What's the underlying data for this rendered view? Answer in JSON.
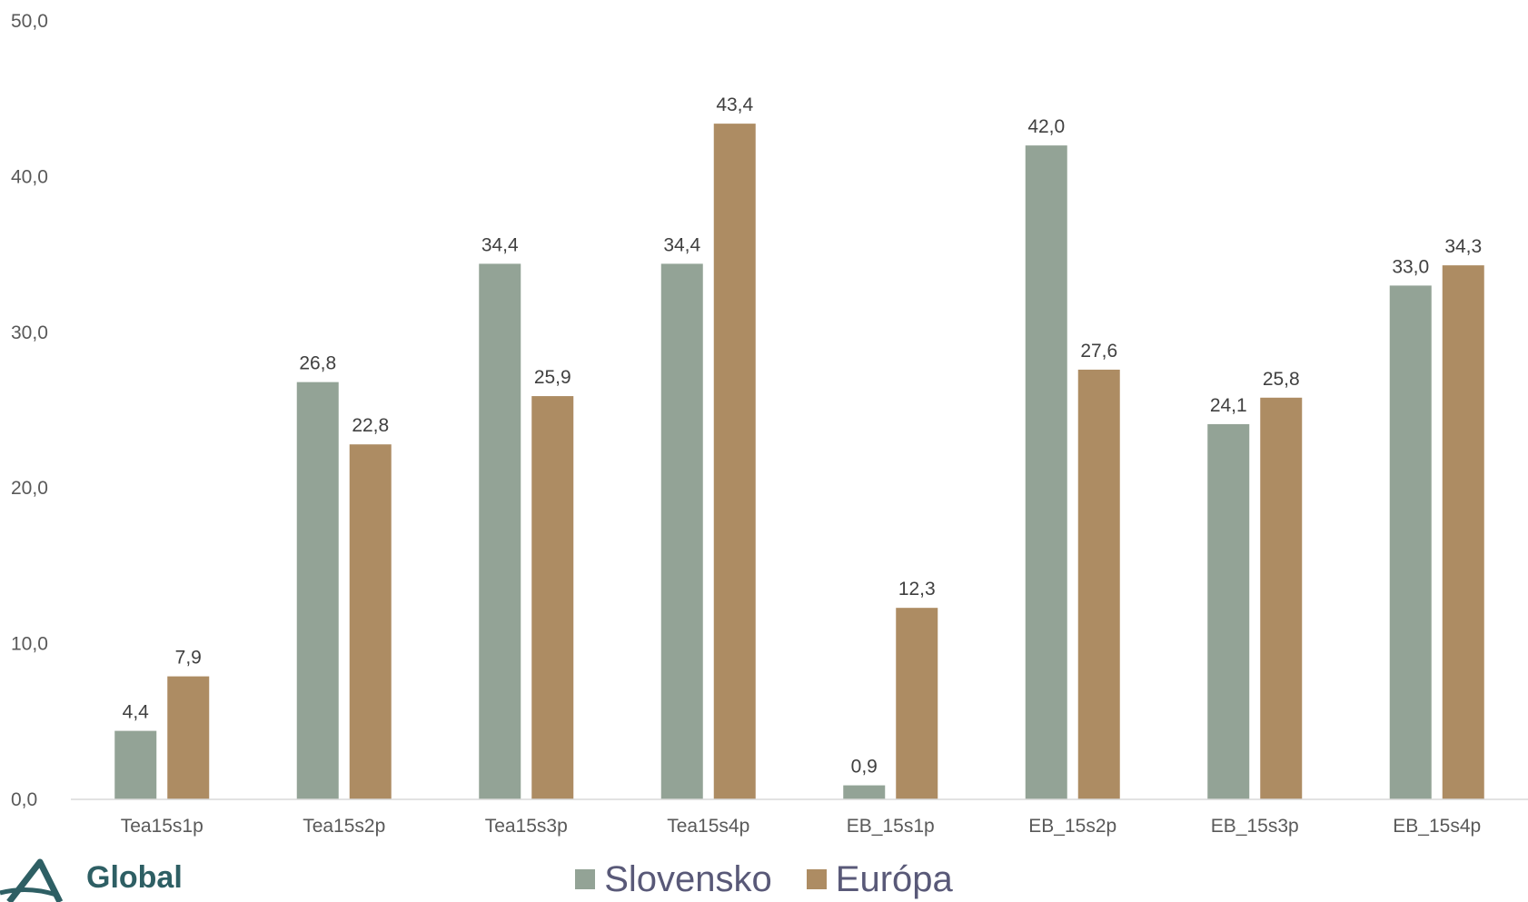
{
  "chart_data": {
    "type": "bar",
    "categories": [
      "Tea15s1p",
      "Tea15s2p",
      "Tea15s3p",
      "Tea15s4p",
      "EB_15s1p",
      "EB_15s2p",
      "EB_15s3p",
      "EB_15s4p"
    ],
    "series": [
      {
        "name": "Slovensko",
        "color": "#93a396",
        "values": [
          4.4,
          26.8,
          34.4,
          34.4,
          0.9,
          42.0,
          24.1,
          33.0
        ],
        "labels": [
          "4,4",
          "26,8",
          "34,4",
          "34,4",
          "0,9",
          "42,0",
          "24,1",
          "33,0"
        ]
      },
      {
        "name": "Európa",
        "color": "#ad8c63",
        "values": [
          7.9,
          22.8,
          25.9,
          43.4,
          12.3,
          27.6,
          25.8,
          34.3
        ],
        "labels": [
          "7,9",
          "22,8",
          "25,9",
          "43,4",
          "12,3",
          "27,6",
          "25,8",
          "34,3"
        ]
      }
    ],
    "ylim": [
      0,
      50
    ],
    "yticks": [
      0,
      10,
      20,
      30,
      40,
      50
    ],
    "ytick_labels": [
      "0,0",
      "10,0",
      "20,0",
      "30,0",
      "40,0",
      "50,0"
    ],
    "grid": false,
    "legend_position": "bottom-center",
    "xlabel": "",
    "ylabel": "",
    "title": ""
  },
  "logo": {
    "text": "Global"
  }
}
